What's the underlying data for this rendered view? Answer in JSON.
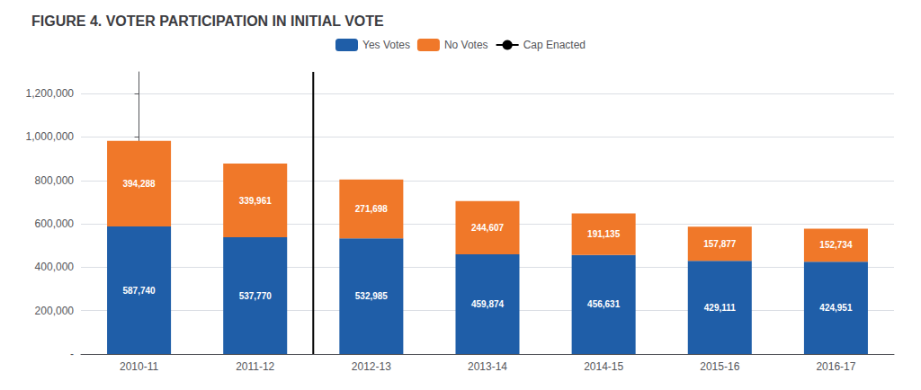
{
  "chart_data": {
    "type": "bar",
    "title": "FIGURE 4. VOTER PARTICIPATION IN INITIAL VOTE",
    "categories": [
      "2010-11",
      "2011-12",
      "2012-13",
      "2013-14",
      "2014-15",
      "2015-16",
      "2016-17"
    ],
    "series": [
      {
        "name": "Yes Votes",
        "color": "#1F5EA8",
        "values": [
          587740,
          537770,
          532985,
          459874,
          456631,
          429111,
          424951
        ],
        "value_labels": [
          "587,740",
          "537,770",
          "532,985",
          "459,874",
          "456,631",
          "429,111",
          "424,951"
        ]
      },
      {
        "name": "No Votes",
        "color": "#F07829",
        "values": [
          394288,
          339961,
          271698,
          244607,
          191135,
          157877,
          152734
        ],
        "value_labels": [
          "394,288",
          "339,961",
          "271,698",
          "244,607",
          "191,135",
          "157,877",
          "152,734"
        ]
      }
    ],
    "annotations": [
      {
        "text": "Cap Enacted",
        "type": "line",
        "color": "#000000",
        "before": "2012-13"
      }
    ],
    "stacked": true,
    "data_labels": true,
    "ylim": [
      0,
      1300000
    ],
    "yticks": [
      {
        "value": 0,
        "label": "-"
      },
      {
        "value": 200000,
        "label": "200,000"
      },
      {
        "value": 400000,
        "label": "400,000"
      },
      {
        "value": 600000,
        "label": "600,000"
      },
      {
        "value": 800000,
        "label": "800,000"
      },
      {
        "value": 1000000,
        "label": "1,000,000"
      },
      {
        "value": 1200000,
        "label": "1,200,000"
      }
    ],
    "grid": true,
    "legend": "top"
  }
}
